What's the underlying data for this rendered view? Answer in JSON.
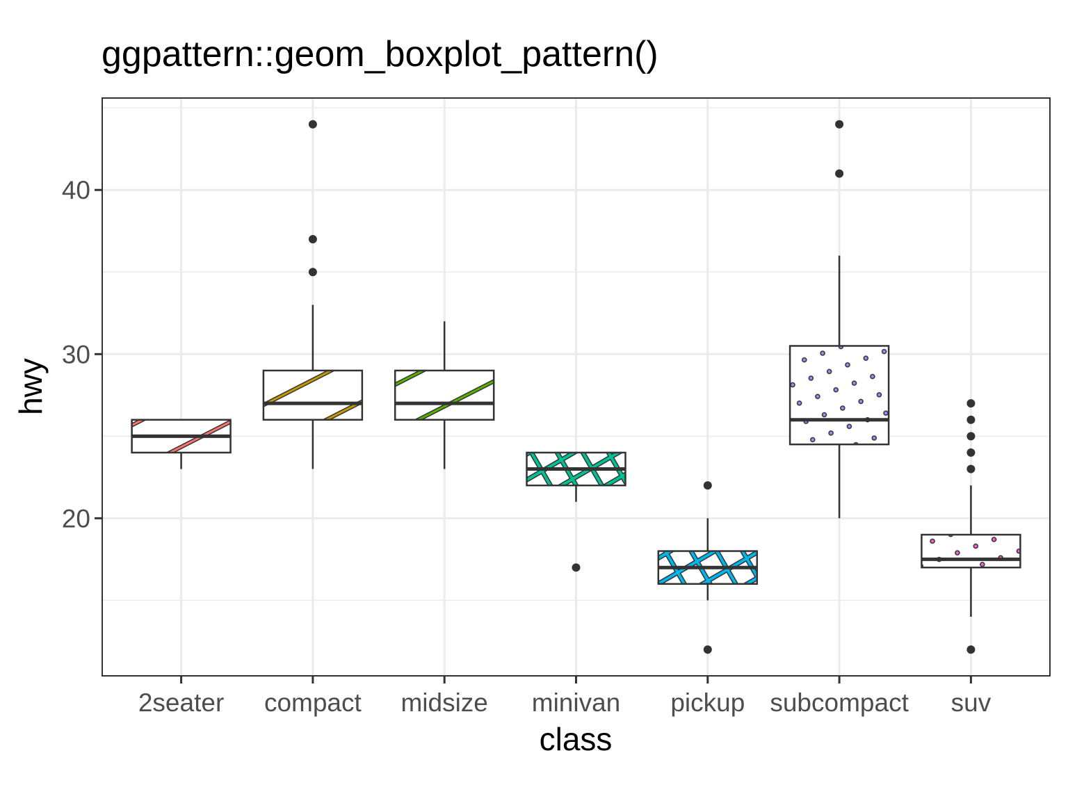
{
  "chart_data": {
    "type": "boxplot",
    "title": "ggpattern::geom_boxplot_pattern()",
    "xlabel": "class",
    "ylabel": "hwy",
    "ylim": [
      10.4,
      45.6
    ],
    "yticks": [
      20,
      30,
      40
    ],
    "grid": true,
    "categories": [
      "2seater",
      "compact",
      "midsize",
      "minivan",
      "pickup",
      "subcompact",
      "suv"
    ],
    "boxes": [
      {
        "category": "2seater",
        "lower_whisker": 23,
        "q1": 24,
        "median": 25,
        "q3": 26,
        "upper_whisker": 26,
        "outliers": [],
        "pattern": "stripe",
        "color": "#F8766D"
      },
      {
        "category": "compact",
        "lower_whisker": 23,
        "q1": 26,
        "median": 27,
        "q3": 29,
        "upper_whisker": 33,
        "outliers": [
          35,
          37,
          44
        ],
        "pattern": "stripe",
        "color": "#C49A00"
      },
      {
        "category": "midsize",
        "lower_whisker": 23,
        "q1": 26,
        "median": 27,
        "q3": 29,
        "upper_whisker": 32,
        "outliers": [],
        "pattern": "stripe",
        "color": "#53B400"
      },
      {
        "category": "minivan",
        "lower_whisker": 21,
        "q1": 22,
        "median": 23,
        "q3": 24,
        "upper_whisker": 24,
        "outliers": [
          17
        ],
        "pattern": "crosshatch",
        "color": "#00C094"
      },
      {
        "category": "pickup",
        "lower_whisker": 15,
        "q1": 16,
        "median": 17,
        "q3": 18,
        "upper_whisker": 20,
        "outliers": [
          12,
          22
        ],
        "pattern": "crosshatch",
        "color": "#00B6EB"
      },
      {
        "category": "subcompact",
        "lower_whisker": 20,
        "q1": 24.5,
        "median": 26,
        "q3": 30.5,
        "upper_whisker": 36,
        "outliers": [
          41,
          44
        ],
        "pattern": "circle",
        "color": "#A58AFF"
      },
      {
        "category": "suv",
        "lower_whisker": 14,
        "q1": 17,
        "median": 17.5,
        "q3": 19,
        "upper_whisker": 22,
        "outliers": [
          12,
          23,
          24,
          25,
          26,
          27
        ],
        "pattern": "circle",
        "color": "#FB61D7"
      }
    ]
  }
}
